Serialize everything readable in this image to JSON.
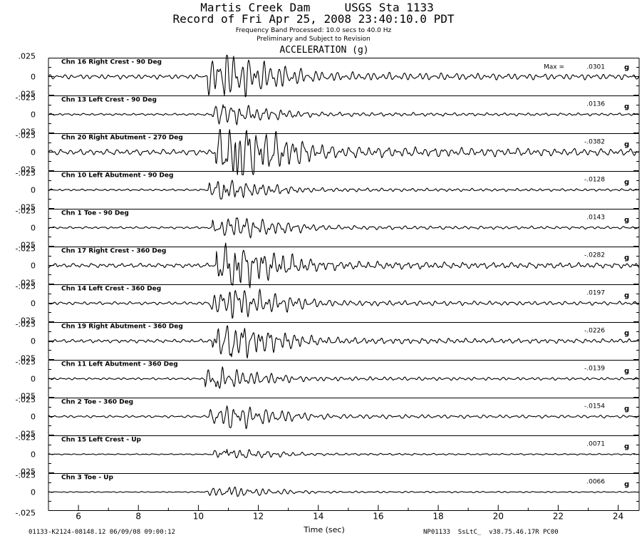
{
  "header": {
    "title_line1": "Martis Creek Dam     USGS Sta 1133",
    "title_line2": "Record of Fri Apr 25, 2008 23:40:10.0 PDT",
    "subtitle_line1": "Frequency Band Processed: 10.0 secs to 40.0 Hz",
    "subtitle_line2": "Preliminary and Subject to Revision",
    "panel_heading": "ACCELERATION (g)"
  },
  "footer": {
    "left": "01133-K2124-08148.12 06/09/08 09:00:12",
    "right": "NP01133  SsLtC_  v38.75.46.17R PC00"
  },
  "chart_data": {
    "type": "line",
    "title": "Martis Creek Dam     USGS Sta 1133",
    "xlabel": "Time (sec)",
    "ylabel": "ACCELERATION (g)",
    "xlim": [
      5.0,
      24.7
    ],
    "x_ticks": [
      6,
      8,
      10,
      12,
      14,
      16,
      18,
      20,
      22,
      24
    ],
    "ylim": [
      -0.025,
      0.025
    ],
    "y_tick_labels": [
      ".025",
      "0",
      "-.025"
    ],
    "max_prefix": "Max =",
    "unit": "g",
    "series": [
      {
        "name": "Chn 16  Right Crest - 90 Deg",
        "max": ".0301",
        "peak": 0.0301
      },
      {
        "name": "Chn 13  Left Crest - 90 Deg",
        "max": ".0136",
        "peak": 0.0136
      },
      {
        "name": "Chn 20  Right Abutment - 270 Deg",
        "max": "-.0382",
        "peak": -0.0382
      },
      {
        "name": "Chn 10  Left Abutment - 90 Deg",
        "max": "-.0128",
        "peak": -0.0128
      },
      {
        "name": "Chn 1  Toe - 90 Deg",
        "max": ".0143",
        "peak": 0.0143
      },
      {
        "name": "Chn 17  Right Crest - 360 Deg",
        "max": "-.0282",
        "peak": -0.0282
      },
      {
        "name": "Chn 14  Left Crest - 360 Deg",
        "max": ".0197",
        "peak": 0.0197
      },
      {
        "name": "Chn 19  Right Abutment - 360 Deg",
        "max": "-.0226",
        "peak": -0.0226
      },
      {
        "name": "Chn 11  Left Abutment - 360 Deg",
        "max": "-.0139",
        "peak": -0.0139
      },
      {
        "name": "Chn 2  Toe - 360 Deg",
        "max": "-.0154",
        "peak": -0.0154
      },
      {
        "name": "Chn 15  Left Crest - Up",
        "max": ".0071",
        "peak": 0.0071
      },
      {
        "name": "Chn 3  Toe - Up",
        "max": ".0066",
        "peak": 0.0066
      }
    ]
  }
}
